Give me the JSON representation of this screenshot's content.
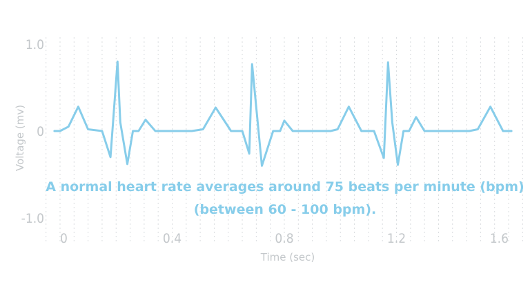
{
  "chart_data": {
    "type": "line",
    "xlabel": "Time (sec)",
    "ylabel": "Voltage (mv)",
    "xlim": [
      0,
      1.6
    ],
    "ylim": [
      -1.0,
      1.0
    ],
    "x_ticks": [
      "0",
      "0.4",
      "0.8",
      "1.2",
      "1.6"
    ],
    "y_ticks": [
      "1.0",
      "0",
      "-1.0"
    ],
    "grid": "vertical-dotted",
    "line_color": "#87cdea",
    "grid_color": "#d9dcdf",
    "annotation": [
      "A normal heart rate averages around 75 beats per minute (bpm)",
      "(between 60 - 100 bpm)."
    ],
    "series": [
      {
        "x": [
          -0.02,
          0.0,
          0.03,
          0.065,
          0.1,
          0.15,
          0.18,
          0.205,
          0.215,
          0.24,
          0.26,
          0.28,
          0.305,
          0.34,
          0.36,
          0.47,
          0.51,
          0.555,
          0.61,
          0.65,
          0.675,
          0.685,
          0.705,
          0.72,
          0.76,
          0.785,
          0.8,
          0.83,
          0.85,
          0.965,
          0.99,
          1.03,
          1.075,
          1.12,
          1.155,
          1.17,
          1.185,
          1.205,
          1.225,
          1.245,
          1.27,
          1.3,
          1.325,
          1.345,
          1.46,
          1.49,
          1.535,
          1.58,
          1.61
        ],
        "y": [
          0.0,
          0.0,
          0.05,
          0.28,
          0.02,
          0.0,
          -0.3,
          0.8,
          0.1,
          -0.38,
          0.0,
          0.0,
          0.13,
          0.0,
          0.0,
          0.0,
          0.02,
          0.27,
          0.0,
          0.0,
          -0.26,
          0.77,
          0.1,
          -0.4,
          0.0,
          0.0,
          0.12,
          0.0,
          0.0,
          0.0,
          0.02,
          0.28,
          0.0,
          0.0,
          -0.31,
          0.79,
          0.1,
          -0.39,
          0.0,
          0.0,
          0.16,
          0.0,
          0.0,
          0.0,
          0.0,
          0.02,
          0.28,
          0.0,
          0.0
        ]
      }
    ]
  }
}
